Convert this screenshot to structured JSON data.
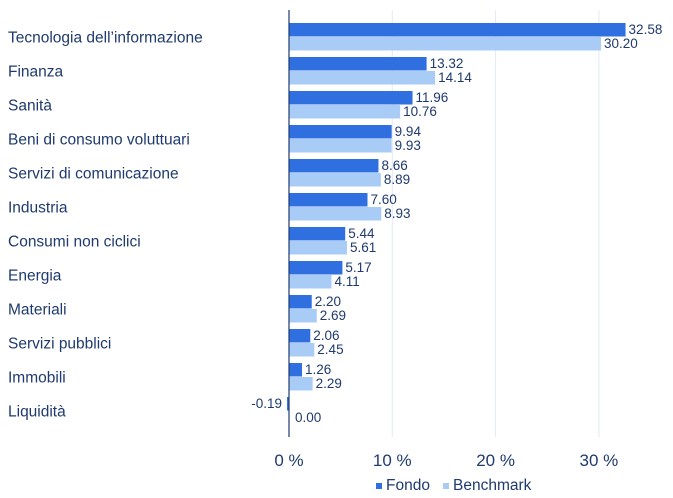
{
  "chart_data": {
    "type": "bar",
    "orientation": "horizontal",
    "categories": [
      "Tecnologia dell’informazione",
      "Finanza",
      "Sanità",
      "Beni di consumo voluttuari",
      "Servizi di comunicazione",
      "Industria",
      "Consumi non ciclici",
      "Energia",
      "Materiali",
      "Servizi pubblici",
      "Immobili",
      "Liquidità"
    ],
    "series": [
      {
        "name": "Fondo",
        "color": "#2f6fe0",
        "values": [
          32.58,
          13.32,
          11.96,
          9.94,
          8.66,
          7.6,
          5.44,
          5.17,
          2.2,
          2.06,
          1.26,
          -0.19
        ],
        "labels": [
          "32.58",
          "13.32",
          "11.96",
          "9.94",
          "8.66",
          "7.60",
          "5.44",
          "5.17",
          "2.20",
          "2.06",
          "1.26",
          "-0.19"
        ]
      },
      {
        "name": "Benchmark",
        "color": "#a9ccf7",
        "values": [
          30.2,
          14.14,
          10.76,
          9.93,
          8.89,
          8.93,
          5.61,
          4.11,
          2.69,
          2.45,
          2.29,
          0.0
        ],
        "labels": [
          "30.20",
          "14.14",
          "10.76",
          "9.93",
          "8.89",
          "8.93",
          "5.61",
          "4.11",
          "2.69",
          "2.45",
          "2.29",
          "0.00"
        ]
      }
    ],
    "xlim": [
      0,
      36
    ],
    "xticks": [
      0,
      10,
      20,
      30
    ],
    "xtick_labels": [
      "0 %",
      "10 %",
      "20 %",
      "30 %"
    ],
    "grid": "vertical",
    "legend": "bottom-right",
    "title": "",
    "xlabel": "",
    "ylabel": ""
  }
}
